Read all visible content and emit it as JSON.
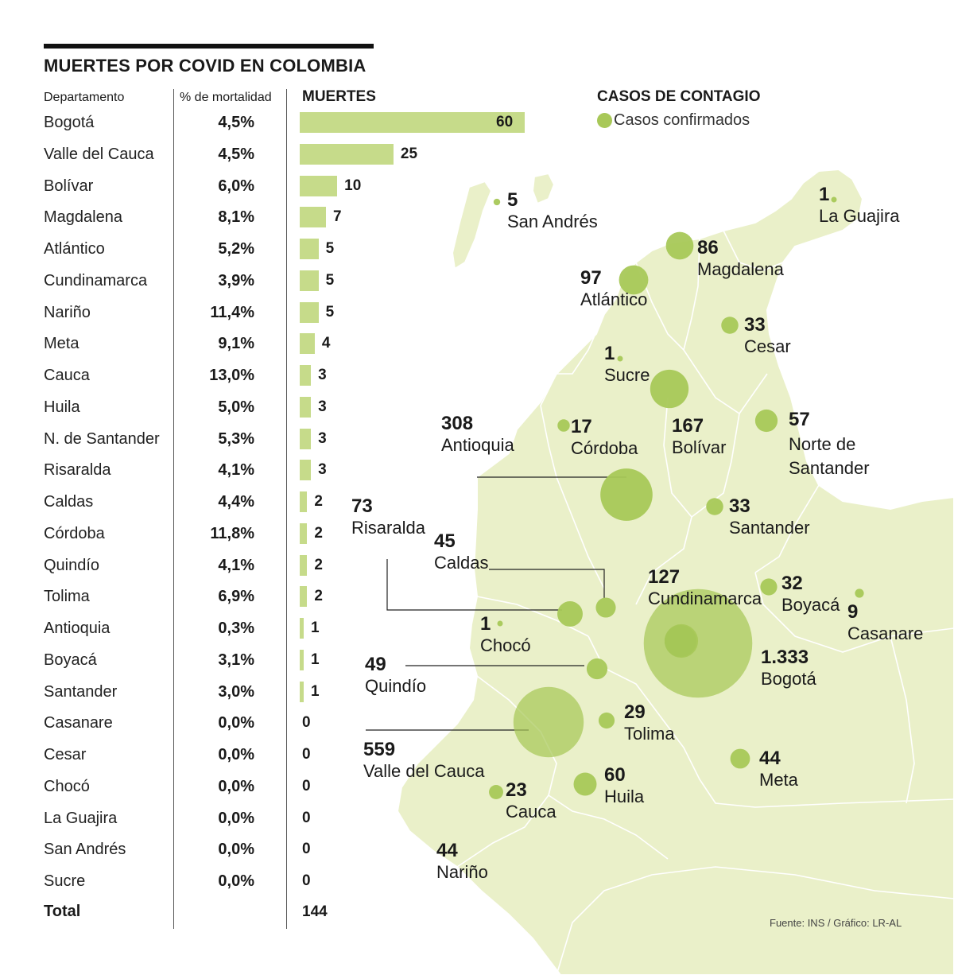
{
  "title": "MUERTES POR COVID EN COLOMBIA",
  "table": {
    "col_department": "Departamento",
    "col_mortality": "% de mortalidad",
    "col_deaths": "MUERTES",
    "total_label": "Total",
    "total_value": "144"
  },
  "chart_data": {
    "type": "bar",
    "title": "MUERTES",
    "categories": [
      "Bogotá",
      "Valle del Cauca",
      "Bolívar",
      "Magdalena",
      "Atlántico",
      "Cundinamarca",
      "Nariño",
      "Meta",
      "Cauca",
      "Huila",
      "N. de Santander",
      "Risaralda",
      "Caldas",
      "Córdoba",
      "Quindío",
      "Tolima",
      "Antioquia",
      "Boyacá",
      "Santander",
      "Casanare",
      "Cesar",
      "Chocó",
      "La Guajira",
      "San Andrés",
      "Sucre"
    ],
    "values": [
      60,
      25,
      10,
      7,
      5,
      5,
      5,
      4,
      3,
      3,
      3,
      3,
      2,
      2,
      2,
      2,
      1,
      1,
      1,
      0,
      0,
      0,
      0,
      0,
      0
    ],
    "mortality": [
      "4,5%",
      "4,5%",
      "6,0%",
      "8,1%",
      "5,2%",
      "3,9%",
      "11,4%",
      "9,1%",
      "13,0%",
      "5,0%",
      "5,3%",
      "4,1%",
      "4,4%",
      "11,8%",
      "4,1%",
      "6,9%",
      "0,3%",
      "3,1%",
      "3,0%",
      "0,0%",
      "0,0%",
      "0,0%",
      "0,0%",
      "0,0%",
      "0,0%"
    ],
    "bar_color": "#c6db8a"
  },
  "map": {
    "title": "CASOS DE CONTAGIO",
    "legend": "Casos confirmados",
    "land_color": "#eaf0c9",
    "bubble_color": "#a8c858",
    "cases": [
      {
        "name": "La Guajira",
        "label": "1",
        "cases": 1
      },
      {
        "name": "San Andrés",
        "label": "5",
        "cases": 5
      },
      {
        "name": "Magdalena",
        "label": "86",
        "cases": 86
      },
      {
        "name": "Atlántico",
        "label": "97",
        "cases": 97
      },
      {
        "name": "Cesar",
        "label": "33",
        "cases": 33
      },
      {
        "name": "Sucre",
        "label": "1",
        "cases": 1
      },
      {
        "name": "Bolívar",
        "label": "167",
        "cases": 167
      },
      {
        "name": "Córdoba",
        "label": "17",
        "cases": 17
      },
      {
        "name": "Antioquia",
        "label": "308",
        "cases": 308
      },
      {
        "name": "Norte de Santander",
        "label": "57",
        "cases": 57
      },
      {
        "name": "Santander",
        "label": "33",
        "cases": 33
      },
      {
        "name": "Risaralda",
        "label": "73",
        "cases": 73
      },
      {
        "name": "Caldas",
        "label": "45",
        "cases": 45
      },
      {
        "name": "Cundinamarca",
        "label": "127",
        "cases": 127
      },
      {
        "name": "Boyacá",
        "label": "32",
        "cases": 32
      },
      {
        "name": "Casanare",
        "label": "9",
        "cases": 9
      },
      {
        "name": "Chocó",
        "label": "1",
        "cases": 1
      },
      {
        "name": "Quindío",
        "label": "49",
        "cases": 49
      },
      {
        "name": "Bogotá",
        "label": "1.333",
        "cases": 1333
      },
      {
        "name": "Tolima",
        "label": "29",
        "cases": 29
      },
      {
        "name": "Valle del Cauca",
        "label": "559",
        "cases": 559
      },
      {
        "name": "Meta",
        "label": "44",
        "cases": 44
      },
      {
        "name": "Huila",
        "label": "60",
        "cases": 60
      },
      {
        "name": "Cauca",
        "label": "23",
        "cases": 23
      },
      {
        "name": "Nariño",
        "label": "44",
        "cases": 44
      }
    ]
  },
  "source": "Fuente: INS / Gráfico: LR-AL"
}
